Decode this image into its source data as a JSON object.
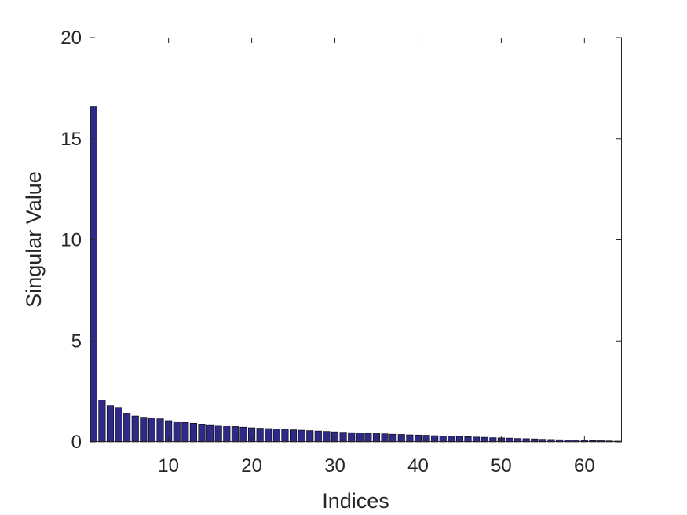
{
  "chart_data": {
    "type": "bar",
    "title": "",
    "xlabel": "Indices",
    "ylabel": "Singular Value",
    "xlim": [
      0.5,
      64.5
    ],
    "ylim": [
      0,
      20
    ],
    "xticks": [
      10,
      20,
      30,
      40,
      50,
      60
    ],
    "yticks": [
      0,
      5,
      10,
      15,
      20
    ],
    "grid": false,
    "legend": "none",
    "bar_color": "#2e2a86",
    "bar_edge_color": "#000000",
    "x": [
      1,
      2,
      3,
      4,
      5,
      6,
      7,
      8,
      9,
      10,
      11,
      12,
      13,
      14,
      15,
      16,
      17,
      18,
      19,
      20,
      21,
      22,
      23,
      24,
      25,
      26,
      27,
      28,
      29,
      30,
      31,
      32,
      33,
      34,
      35,
      36,
      37,
      38,
      39,
      40,
      41,
      42,
      43,
      44,
      45,
      46,
      47,
      48,
      49,
      50,
      51,
      52,
      53,
      54,
      55,
      56,
      57,
      58,
      59,
      60,
      61,
      62,
      63,
      64
    ],
    "values": [
      16.6,
      2.08,
      1.8,
      1.68,
      1.42,
      1.28,
      1.22,
      1.18,
      1.14,
      1.05,
      1.0,
      0.96,
      0.92,
      0.88,
      0.85,
      0.82,
      0.79,
      0.76,
      0.73,
      0.7,
      0.68,
      0.66,
      0.64,
      0.62,
      0.6,
      0.58,
      0.56,
      0.54,
      0.52,
      0.5,
      0.48,
      0.46,
      0.44,
      0.42,
      0.41,
      0.4,
      0.38,
      0.37,
      0.35,
      0.34,
      0.33,
      0.31,
      0.3,
      0.28,
      0.27,
      0.26,
      0.24,
      0.23,
      0.21,
      0.2,
      0.19,
      0.17,
      0.16,
      0.15,
      0.13,
      0.12,
      0.11,
      0.1,
      0.09,
      0.08,
      0.07,
      0.06,
      0.05,
      0.04
    ]
  }
}
